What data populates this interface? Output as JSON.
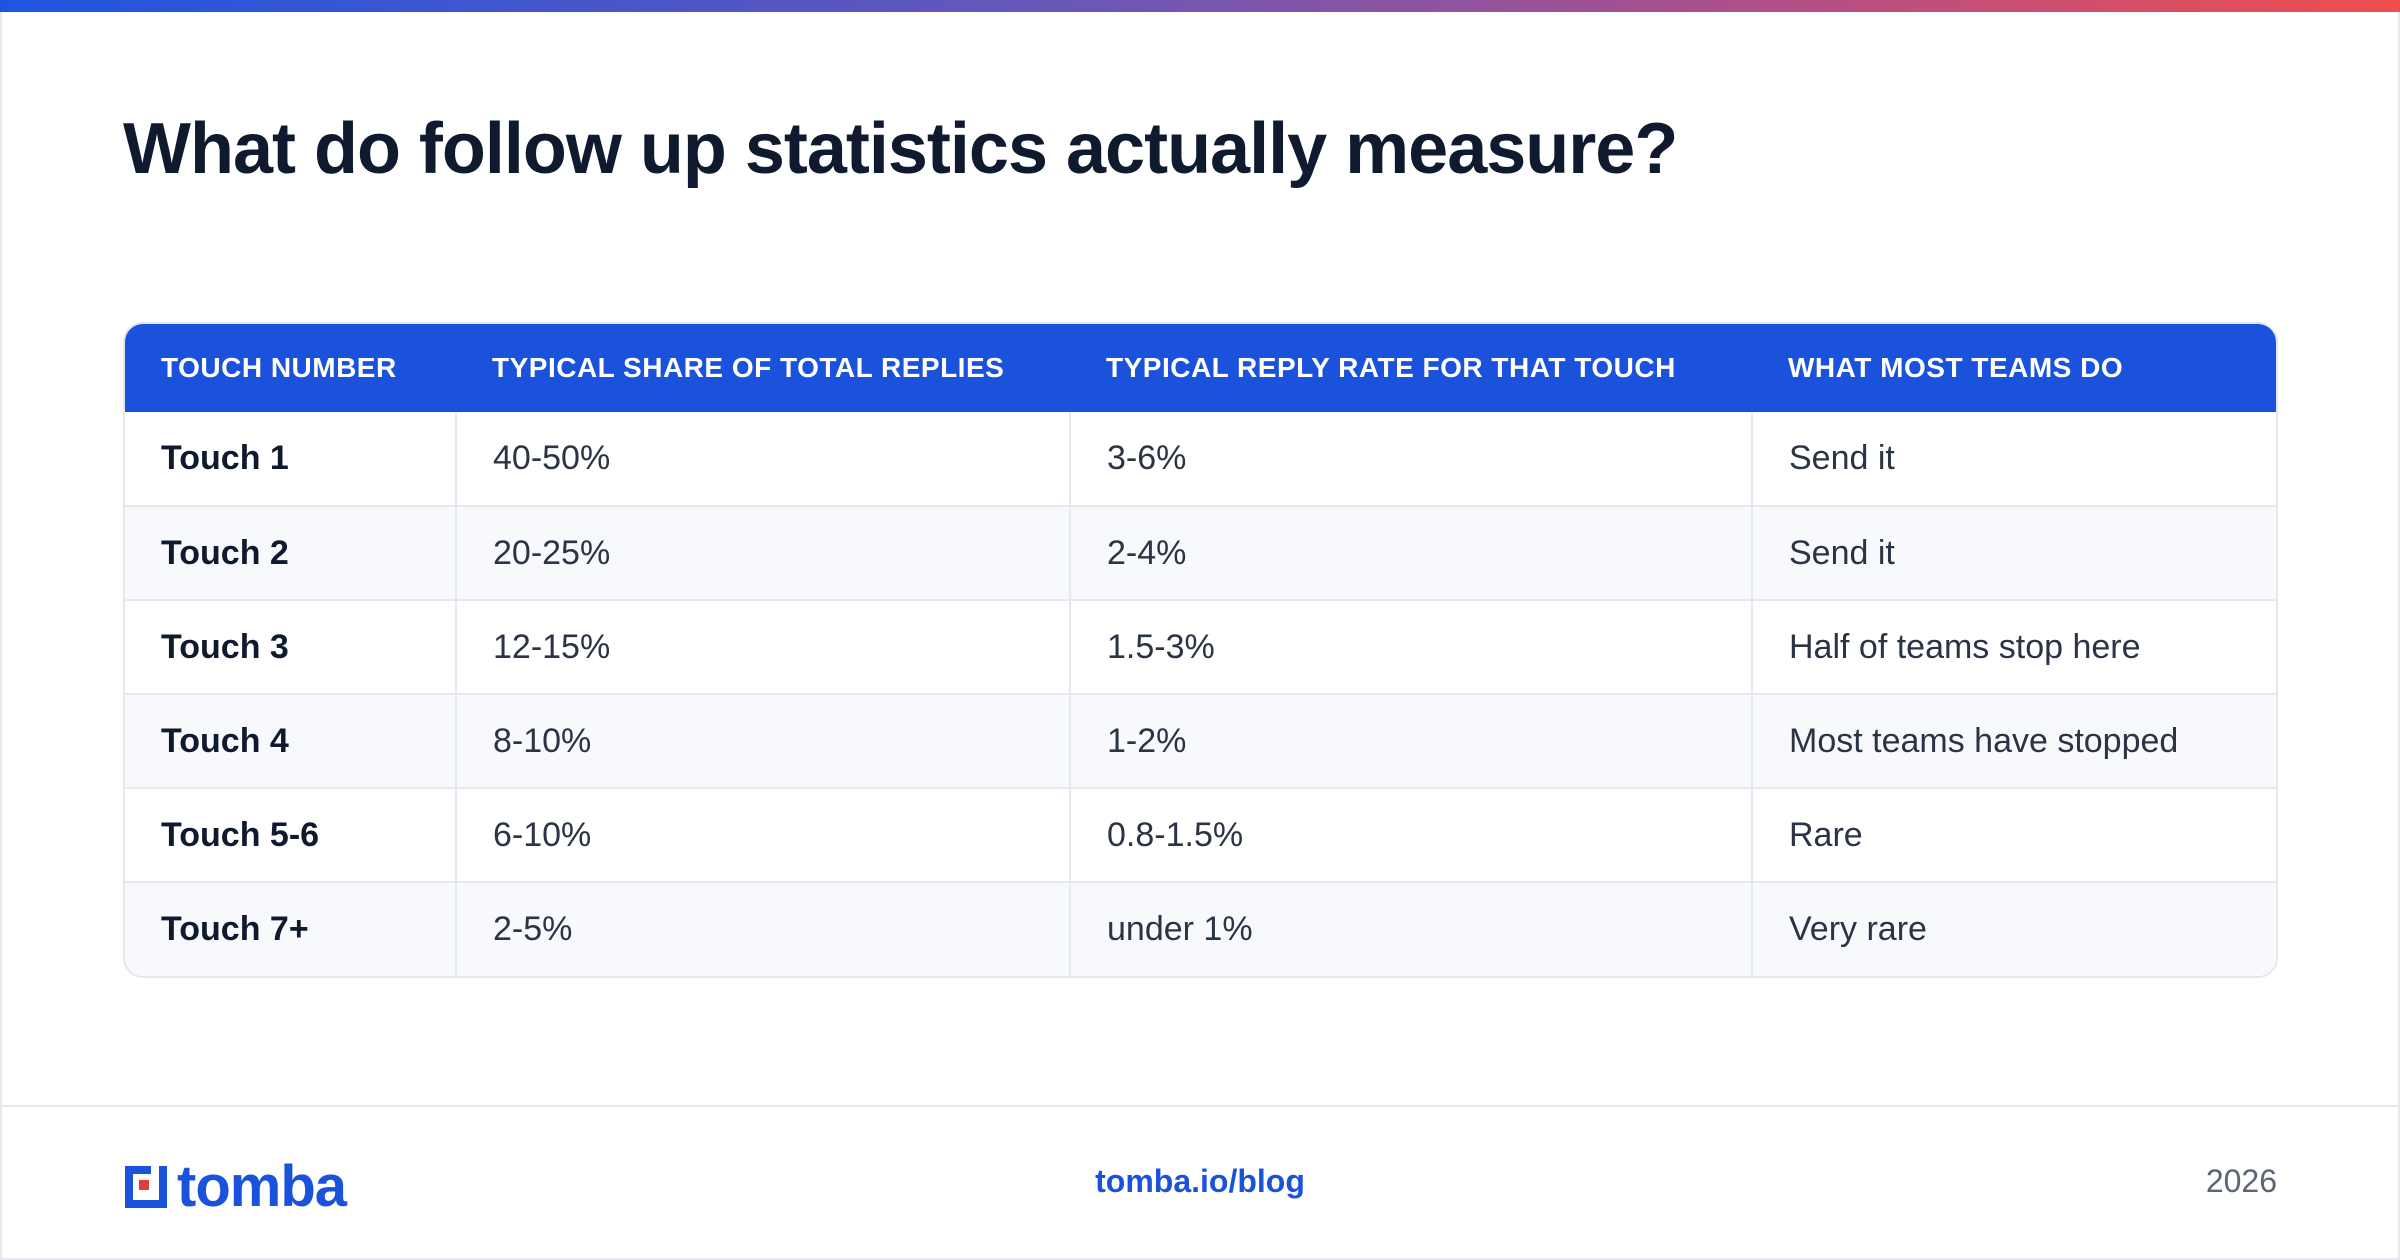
{
  "title": "What do follow up statistics actually measure?",
  "table": {
    "headers": [
      "TOUCH NUMBER",
      "TYPICAL SHARE OF TOTAL REPLIES",
      "TYPICAL REPLY RATE FOR THAT TOUCH",
      "WHAT MOST TEAMS DO"
    ],
    "rows": [
      [
        "Touch 1",
        "40-50%",
        "3-6%",
        "Send it"
      ],
      [
        "Touch 2",
        "20-25%",
        "2-4%",
        "Send it"
      ],
      [
        "Touch 3",
        "12-15%",
        "1.5-3%",
        "Half of teams stop here"
      ],
      [
        "Touch 4",
        "8-10%",
        "1-2%",
        "Most teams have stopped"
      ],
      [
        "Touch 5-6",
        "6-10%",
        "0.8-1.5%",
        "Rare"
      ],
      [
        "Touch 7+",
        "2-5%",
        "under 1%",
        "Very rare"
      ]
    ]
  },
  "footer": {
    "brand": "tomba",
    "link": "tomba.io/blog",
    "year": "2026"
  },
  "colors": {
    "accent": "#1a52dc",
    "logo_red": "#e23b3b",
    "title": "#0f1a2e"
  },
  "icons": {
    "logo": "tomba-logo-mark"
  }
}
